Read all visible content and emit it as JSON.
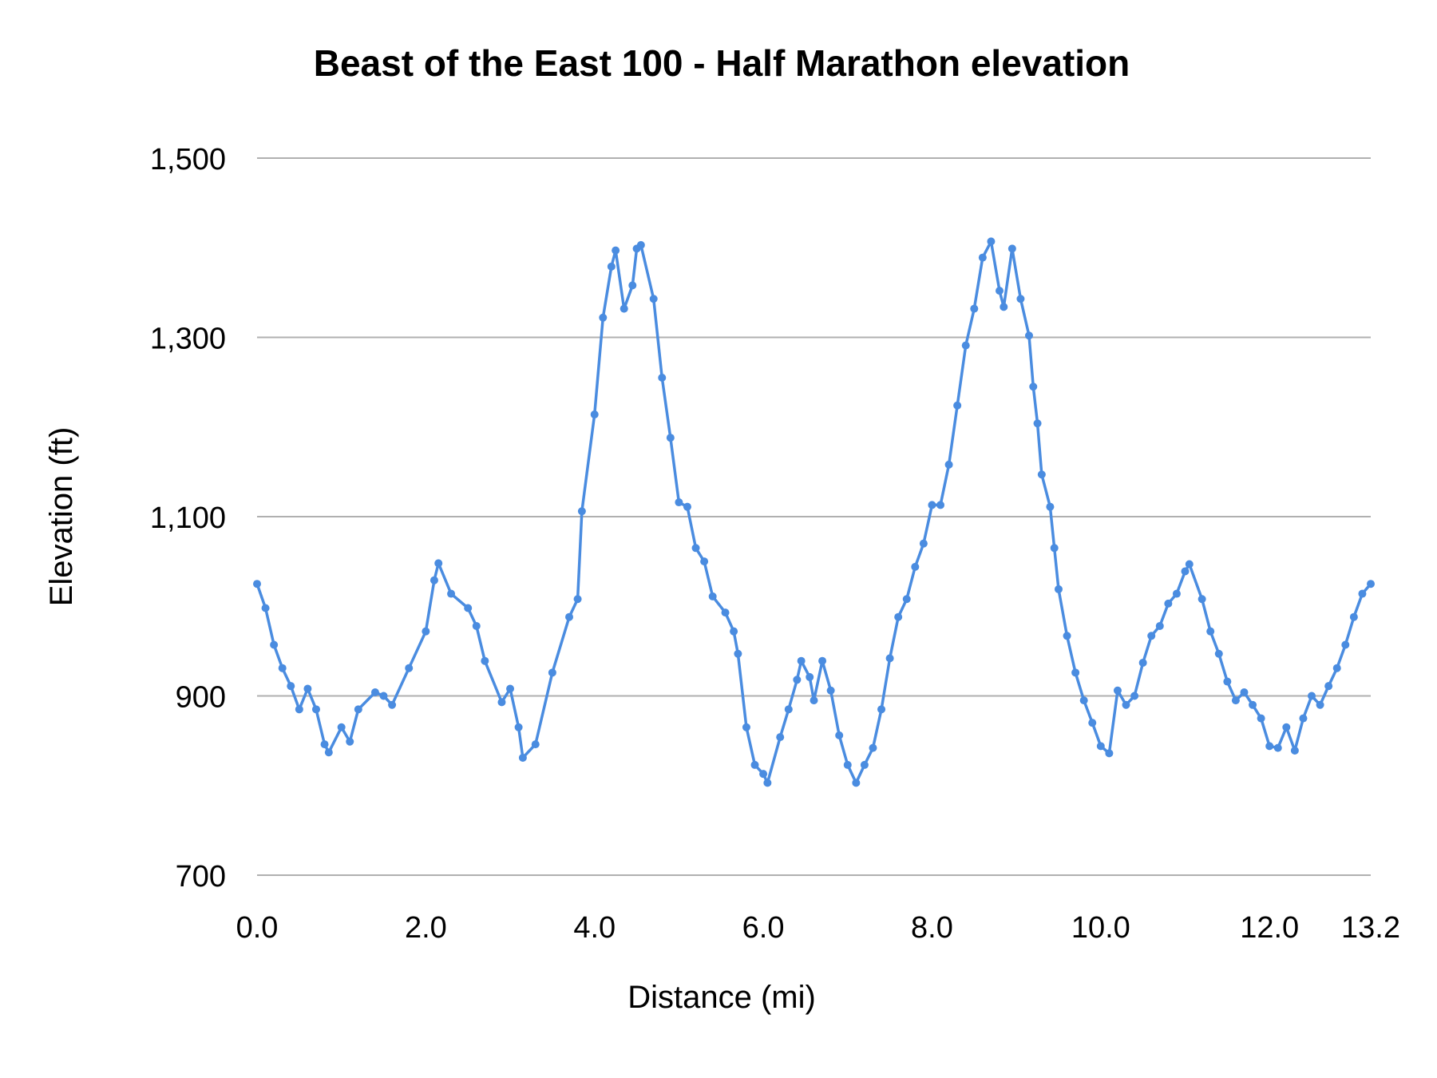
{
  "chart_data": {
    "type": "line",
    "title": "Beast of the East 100 - Half Marathon elevation",
    "xlabel": "Distance (mi)",
    "ylabel": "Elevation (ft)",
    "xlim": [
      0,
      13.2
    ],
    "ylim": [
      700,
      1500
    ],
    "x_ticks": [
      "0.0",
      "2.0",
      "4.0",
      "6.0",
      "8.0",
      "10.0",
      "12.0",
      "13.2"
    ],
    "x_tick_values": [
      0,
      2,
      4,
      6,
      8,
      10,
      12,
      13.2
    ],
    "y_ticks": [
      "1,500",
      "1,300",
      "1,100",
      "900",
      "700"
    ],
    "y_tick_values": [
      1500,
      1300,
      1100,
      900,
      700
    ],
    "grid": "horizontal",
    "markers": true,
    "legend": "none",
    "color": "#4a8ce0",
    "series": [
      {
        "x": [
          0,
          0.1,
          0.2,
          0.3,
          0.4,
          0.5,
          0.6,
          0.7,
          0.8,
          0.85,
          1.0,
          1.1,
          1.2,
          1.4,
          1.5,
          1.6,
          1.8,
          2.0,
          2.1,
          2.15,
          2.3,
          2.5,
          2.6,
          2.7,
          2.9,
          3.0,
          3.1,
          3.15,
          3.3,
          3.5,
          3.7,
          3.8,
          3.85,
          4.0,
          4.1,
          4.2,
          4.25,
          4.35,
          4.45,
          4.5,
          4.55,
          4.7,
          4.8,
          4.9,
          5.0,
          5.1,
          5.2,
          5.3,
          5.4,
          5.55,
          5.65,
          5.7,
          5.8,
          5.9,
          6.0,
          6.05,
          6.2,
          6.3,
          6.4,
          6.45,
          6.55,
          6.6,
          6.7,
          6.8,
          6.9,
          7.0,
          7.1,
          7.2,
          7.3,
          7.4,
          7.5,
          7.6,
          7.7,
          7.8,
          7.9,
          8.0,
          8.1,
          8.2,
          8.3,
          8.4,
          8.5,
          8.6,
          8.7,
          8.8,
          8.85,
          8.95,
          9.05,
          9.15,
          9.2,
          9.25,
          9.3,
          9.4,
          9.45,
          9.5,
          9.6,
          9.7,
          9.8,
          9.9,
          10.0,
          10.1,
          10.2,
          10.3,
          10.4,
          10.5,
          10.6,
          10.7,
          10.8,
          10.9,
          11.0,
          11.05,
          11.2,
          11.3,
          11.4,
          11.5,
          11.6,
          11.7,
          11.8,
          11.9,
          12.0,
          12.1,
          12.2,
          12.3,
          12.4,
          12.5,
          12.6,
          12.7,
          12.8,
          12.9,
          13.0,
          13.1,
          13.2
        ],
        "y": [
          1025,
          998,
          957,
          931,
          911,
          885,
          908,
          885,
          846,
          837,
          865,
          849,
          885,
          904,
          900,
          890,
          931,
          972,
          1029,
          1048,
          1014,
          998,
          978,
          939,
          893,
          908,
          865,
          831,
          846,
          926,
          988,
          1008,
          1106,
          1214,
          1322,
          1379,
          1397,
          1332,
          1358,
          1399,
          1403,
          1343,
          1255,
          1188,
          1116,
          1111,
          1065,
          1050,
          1011,
          993,
          972,
          947,
          865,
          823,
          813,
          803,
          854,
          885,
          918,
          939,
          921,
          895,
          939,
          906,
          856,
          823,
          803,
          823,
          842,
          885,
          942,
          988,
          1008,
          1044,
          1070,
          1113,
          1113,
          1158,
          1224,
          1291,
          1332,
          1389,
          1407,
          1352,
          1334,
          1399,
          1343,
          1302,
          1245,
          1204,
          1147,
          1111,
          1065,
          1019,
          967,
          926,
          895,
          870,
          844,
          836,
          906,
          890,
          900,
          937,
          967,
          978,
          1003,
          1014,
          1039,
          1047,
          1008,
          972,
          947,
          916,
          895,
          904,
          890,
          875,
          844,
          842,
          865,
          839,
          875,
          900,
          890,
          911,
          931,
          957,
          988,
          1014,
          1025
        ]
      }
    ]
  }
}
